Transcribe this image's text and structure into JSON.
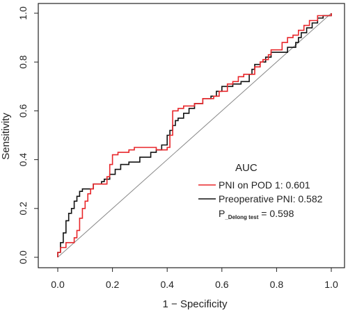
{
  "chart_data": {
    "type": "line",
    "xlabel": "1 − Specificity",
    "ylabel": "Sensitivity",
    "xlim": [
      0,
      1
    ],
    "ylim": [
      0,
      1
    ],
    "x_ticks": [
      "0.0",
      "0.2",
      "0.4",
      "0.6",
      "0.8",
      "1.0"
    ],
    "y_ticks": [
      "0.0",
      "0.2",
      "0.4",
      "0.6",
      "0.8",
      "1.0"
    ],
    "grid": false,
    "legend_title": "AUC",
    "legend_position": "bottom-right",
    "annotation": {
      "prefix": "P",
      "subscript": "_Delong test",
      "value": " = 0.598"
    },
    "series": [
      {
        "name": "PNI on POD 1: 0.601",
        "color": "#e8262a",
        "points": [
          [
            0.0,
            0.0
          ],
          [
            0.0,
            0.02
          ],
          [
            0.01,
            0.02
          ],
          [
            0.01,
            0.04
          ],
          [
            0.03,
            0.04
          ],
          [
            0.03,
            0.06
          ],
          [
            0.06,
            0.06
          ],
          [
            0.06,
            0.08
          ],
          [
            0.07,
            0.08
          ],
          [
            0.07,
            0.11
          ],
          [
            0.08,
            0.11
          ],
          [
            0.08,
            0.16
          ],
          [
            0.09,
            0.16
          ],
          [
            0.09,
            0.2
          ],
          [
            0.1,
            0.2
          ],
          [
            0.1,
            0.23
          ],
          [
            0.11,
            0.23
          ],
          [
            0.11,
            0.26
          ],
          [
            0.12,
            0.26
          ],
          [
            0.12,
            0.28
          ],
          [
            0.13,
            0.28
          ],
          [
            0.13,
            0.3
          ],
          [
            0.18,
            0.3
          ],
          [
            0.18,
            0.33
          ],
          [
            0.19,
            0.33
          ],
          [
            0.19,
            0.38
          ],
          [
            0.2,
            0.38
          ],
          [
            0.2,
            0.42
          ],
          [
            0.22,
            0.42
          ],
          [
            0.22,
            0.43
          ],
          [
            0.26,
            0.43
          ],
          [
            0.26,
            0.44
          ],
          [
            0.28,
            0.44
          ],
          [
            0.28,
            0.45
          ],
          [
            0.36,
            0.45
          ],
          [
            0.36,
            0.44
          ],
          [
            0.4,
            0.44
          ],
          [
            0.4,
            0.45
          ],
          [
            0.41,
            0.45
          ],
          [
            0.41,
            0.5
          ],
          [
            0.42,
            0.5
          ],
          [
            0.42,
            0.6
          ],
          [
            0.44,
            0.6
          ],
          [
            0.44,
            0.61
          ],
          [
            0.46,
            0.61
          ],
          [
            0.46,
            0.62
          ],
          [
            0.5,
            0.62
          ],
          [
            0.5,
            0.63
          ],
          [
            0.53,
            0.63
          ],
          [
            0.53,
            0.65
          ],
          [
            0.57,
            0.65
          ],
          [
            0.57,
            0.66
          ],
          [
            0.59,
            0.66
          ],
          [
            0.59,
            0.68
          ],
          [
            0.62,
            0.68
          ],
          [
            0.62,
            0.71
          ],
          [
            0.64,
            0.71
          ],
          [
            0.64,
            0.72
          ],
          [
            0.66,
            0.72
          ],
          [
            0.66,
            0.74
          ],
          [
            0.68,
            0.74
          ],
          [
            0.68,
            0.75
          ],
          [
            0.72,
            0.75
          ],
          [
            0.72,
            0.78
          ],
          [
            0.74,
            0.78
          ],
          [
            0.74,
            0.8
          ],
          [
            0.75,
            0.8
          ],
          [
            0.75,
            0.81
          ],
          [
            0.77,
            0.81
          ],
          [
            0.77,
            0.83
          ],
          [
            0.78,
            0.83
          ],
          [
            0.78,
            0.85
          ],
          [
            0.82,
            0.85
          ],
          [
            0.82,
            0.88
          ],
          [
            0.84,
            0.88
          ],
          [
            0.84,
            0.9
          ],
          [
            0.86,
            0.9
          ],
          [
            0.86,
            0.91
          ],
          [
            0.88,
            0.91
          ],
          [
            0.88,
            0.93
          ],
          [
            0.9,
            0.93
          ],
          [
            0.9,
            0.95
          ],
          [
            0.92,
            0.95
          ],
          [
            0.92,
            0.97
          ],
          [
            0.95,
            0.97
          ],
          [
            0.95,
            0.99
          ],
          [
            1.0,
            0.99
          ],
          [
            1.0,
            1.0
          ]
        ]
      },
      {
        "name": "Preoperative PNI: 0.582",
        "color": "#111111",
        "points": [
          [
            0.0,
            0.0
          ],
          [
            0.0,
            0.02
          ],
          [
            0.01,
            0.02
          ],
          [
            0.01,
            0.06
          ],
          [
            0.02,
            0.06
          ],
          [
            0.02,
            0.1
          ],
          [
            0.03,
            0.1
          ],
          [
            0.03,
            0.15
          ],
          [
            0.04,
            0.15
          ],
          [
            0.04,
            0.18
          ],
          [
            0.05,
            0.18
          ],
          [
            0.05,
            0.2
          ],
          [
            0.06,
            0.2
          ],
          [
            0.06,
            0.23
          ],
          [
            0.07,
            0.23
          ],
          [
            0.07,
            0.25
          ],
          [
            0.08,
            0.25
          ],
          [
            0.08,
            0.27
          ],
          [
            0.09,
            0.27
          ],
          [
            0.09,
            0.28
          ],
          [
            0.13,
            0.28
          ],
          [
            0.13,
            0.3
          ],
          [
            0.16,
            0.3
          ],
          [
            0.16,
            0.31
          ],
          [
            0.17,
            0.31
          ],
          [
            0.17,
            0.32
          ],
          [
            0.19,
            0.32
          ],
          [
            0.19,
            0.34
          ],
          [
            0.21,
            0.34
          ],
          [
            0.21,
            0.36
          ],
          [
            0.23,
            0.36
          ],
          [
            0.23,
            0.38
          ],
          [
            0.26,
            0.38
          ],
          [
            0.26,
            0.39
          ],
          [
            0.3,
            0.39
          ],
          [
            0.3,
            0.41
          ],
          [
            0.34,
            0.41
          ],
          [
            0.34,
            0.43
          ],
          [
            0.36,
            0.43
          ],
          [
            0.36,
            0.44
          ],
          [
            0.38,
            0.44
          ],
          [
            0.38,
            0.46
          ],
          [
            0.4,
            0.46
          ],
          [
            0.4,
            0.5
          ],
          [
            0.41,
            0.5
          ],
          [
            0.41,
            0.52
          ],
          [
            0.42,
            0.52
          ],
          [
            0.42,
            0.54
          ],
          [
            0.43,
            0.54
          ],
          [
            0.43,
            0.56
          ],
          [
            0.44,
            0.56
          ],
          [
            0.44,
            0.57
          ],
          [
            0.46,
            0.57
          ],
          [
            0.46,
            0.59
          ],
          [
            0.48,
            0.59
          ],
          [
            0.48,
            0.61
          ],
          [
            0.5,
            0.61
          ],
          [
            0.5,
            0.63
          ],
          [
            0.53,
            0.63
          ],
          [
            0.53,
            0.65
          ],
          [
            0.56,
            0.65
          ],
          [
            0.56,
            0.66
          ],
          [
            0.58,
            0.66
          ],
          [
            0.58,
            0.68
          ],
          [
            0.6,
            0.68
          ],
          [
            0.6,
            0.7
          ],
          [
            0.64,
            0.7
          ],
          [
            0.64,
            0.71
          ],
          [
            0.67,
            0.71
          ],
          [
            0.67,
            0.72
          ],
          [
            0.7,
            0.72
          ],
          [
            0.7,
            0.75
          ],
          [
            0.71,
            0.75
          ],
          [
            0.71,
            0.77
          ],
          [
            0.72,
            0.77
          ],
          [
            0.72,
            0.79
          ],
          [
            0.74,
            0.79
          ],
          [
            0.74,
            0.8
          ],
          [
            0.76,
            0.8
          ],
          [
            0.76,
            0.82
          ],
          [
            0.78,
            0.82
          ],
          [
            0.78,
            0.84
          ],
          [
            0.84,
            0.84
          ],
          [
            0.84,
            0.86
          ],
          [
            0.87,
            0.86
          ],
          [
            0.87,
            0.88
          ],
          [
            0.88,
            0.88
          ],
          [
            0.88,
            0.9
          ],
          [
            0.89,
            0.9
          ],
          [
            0.89,
            0.92
          ],
          [
            0.91,
            0.92
          ],
          [
            0.91,
            0.94
          ],
          [
            0.93,
            0.94
          ],
          [
            0.93,
            0.96
          ],
          [
            0.95,
            0.96
          ],
          [
            0.95,
            0.98
          ],
          [
            0.97,
            0.98
          ],
          [
            0.97,
            0.99
          ],
          [
            1.0,
            0.99
          ],
          [
            1.0,
            1.0
          ]
        ]
      }
    ]
  }
}
